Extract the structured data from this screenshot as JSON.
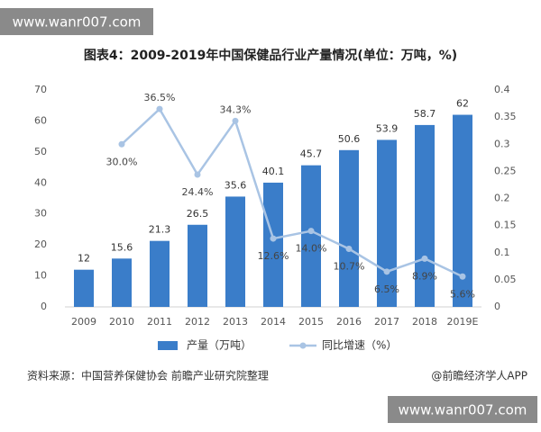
{
  "chart_data": {
    "type": "bar",
    "title": "图表4：2009-2019年中国保健品行业产量情况(单位：万吨，%)",
    "categories": [
      "2009",
      "2010",
      "2011",
      "2012",
      "2013",
      "2014",
      "2015",
      "2016",
      "2017",
      "2018",
      "2019E"
    ],
    "series": [
      {
        "name": "产量（万吨）",
        "color": "#3a7dc9",
        "values": [
          12,
          15.6,
          21.3,
          26.5,
          35.6,
          40.1,
          45.7,
          50.6,
          53.9,
          58.7,
          62
        ]
      },
      {
        "name": "同比增速（%）",
        "color": "#a9c4e4",
        "axis": "y2",
        "type": "line",
        "values": [
          null,
          0.3,
          0.365,
          0.244,
          0.343,
          0.126,
          0.14,
          0.107,
          0.065,
          0.089,
          0.056
        ],
        "value_labels": [
          null,
          "30.0%",
          "36.5%",
          "24.4%",
          "34.3%",
          "12.6%",
          "14.0%",
          "10.7%",
          "6.5%",
          "8.9%",
          "5.6%"
        ]
      }
    ],
    "ylim": [
      0,
      70
    ],
    "yticks": [
      0,
      10,
      20,
      30,
      40,
      50,
      60,
      70
    ],
    "y2lim": [
      0,
      0.4
    ],
    "y2ticks": [
      0,
      0.05,
      0.1,
      0.15,
      0.2,
      0.25,
      0.3,
      0.35,
      0.4
    ],
    "grid": false,
    "legend": "bottom",
    "source": "资料来源：中国营养保健协会 前瞻产业研究院整理",
    "credit": "@前瞻经济学人APP"
  },
  "watermarks": [
    "www.wanr007.com",
    "www.wanr007.com"
  ]
}
